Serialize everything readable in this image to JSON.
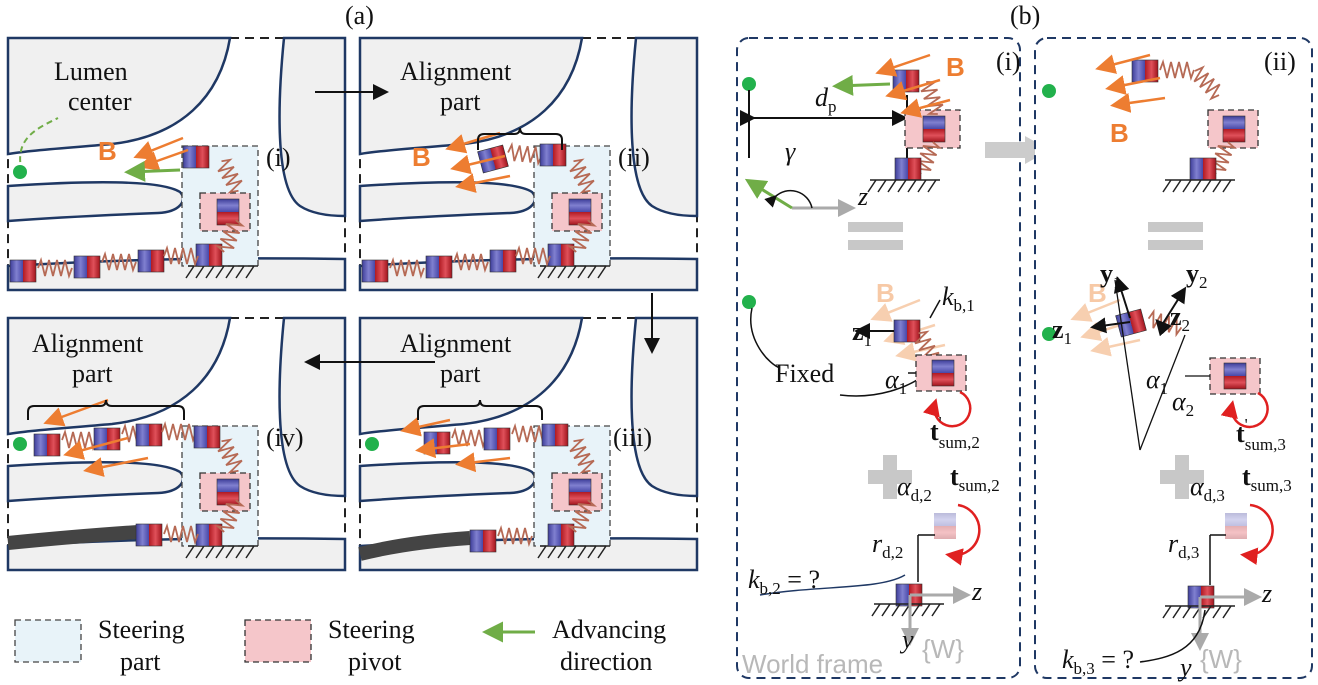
{
  "panel_a": {
    "label": "(a)",
    "i": {
      "label": "(i)",
      "lumen_center": [
        "Lumen",
        "center"
      ],
      "field": "B"
    },
    "ii": {
      "label": "(ii)",
      "alignment_part": [
        "Alignment",
        "part"
      ],
      "field": "B"
    },
    "iii": {
      "label": "(iii)",
      "alignment_part": [
        "Alignment",
        "part"
      ]
    },
    "iv": {
      "label": "(iv)",
      "alignment_part": [
        "Alignment",
        "part"
      ]
    }
  },
  "legend": {
    "steering_part": [
      "Steering",
      "part"
    ],
    "steering_pivot": [
      "Steering",
      "pivot"
    ],
    "advancing_direction": [
      "Advancing",
      "direction"
    ]
  },
  "panel_b": {
    "label": "(b)",
    "i": {
      "label": "(i)",
      "field": "B",
      "distance": {
        "base": "d",
        "sub": "p"
      },
      "angle": "γ",
      "z_axis": "z",
      "field_faded": "B",
      "z1": {
        "base": "z",
        "sub": "1"
      },
      "kb1": {
        "base": "k",
        "sub": "b,1"
      },
      "fixed": "Fixed",
      "alpha1": {
        "base": "α",
        "sub": "1"
      },
      "torque_prime": {
        "base": "t",
        "sup": "'",
        "sub": "sum,2"
      },
      "alpha_d": {
        "base": "α",
        "sub": "d,2"
      },
      "torque": {
        "base": "t",
        "sub": "sum,2"
      },
      "r_d": {
        "base": "r",
        "sub": "d,2"
      },
      "kb2": {
        "base": "k",
        "sub": "b,2",
        "rest": " = ?"
      },
      "world_z": "z",
      "world_y": "y",
      "world_frame_symbol": "{W}",
      "world_frame": "World frame"
    },
    "ii": {
      "label": "(ii)",
      "field": "B",
      "field_faded": "B",
      "y1": {
        "base": "y",
        "sub": "1"
      },
      "y2": {
        "base": "y",
        "sub": "2"
      },
      "z2": {
        "base": "z",
        "sub": "2"
      },
      "z1": {
        "base": "z",
        "sub": "1"
      },
      "alpha1": {
        "base": "α",
        "sub": "1"
      },
      "alpha2": {
        "base": "α",
        "sub": "2"
      },
      "torque_prime": {
        "base": "t",
        "sup": "'",
        "sub": "sum,3"
      },
      "alpha_d": {
        "base": "α",
        "sub": "d,3"
      },
      "torque": {
        "base": "t",
        "sub": "sum,3"
      },
      "r_d": {
        "base": "r",
        "sub": "d,3"
      },
      "world_z": "z",
      "kb3": {
        "base": "k",
        "sub": "b,3",
        "rest": " = ?"
      },
      "world_y": "y",
      "world_frame_symbol": "{W}"
    }
  }
}
